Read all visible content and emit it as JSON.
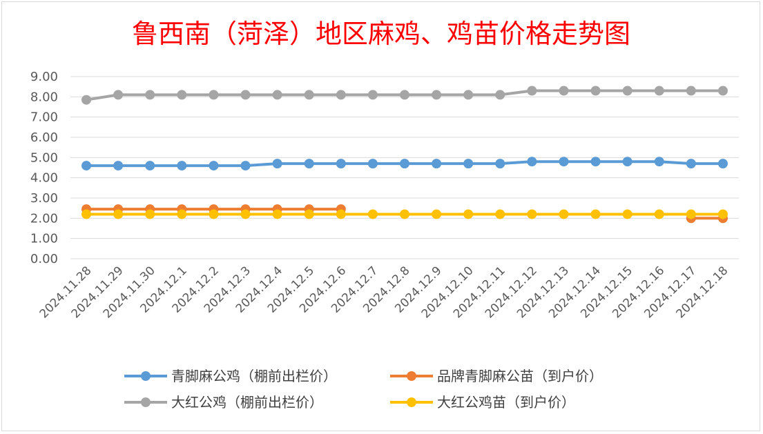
{
  "chart_data": {
    "type": "line",
    "title": "鲁西南（菏泽）地区麻鸡、鸡苗价格走势图",
    "xlabel": "",
    "ylabel": "",
    "ylim": [
      0,
      9
    ],
    "yticks": [
      "0.00",
      "1.00",
      "2.00",
      "3.00",
      "4.00",
      "5.00",
      "6.00",
      "7.00",
      "8.00",
      "9.00"
    ],
    "grid": "horizontal",
    "legend_position": "bottom",
    "categories": [
      "2024.11.28",
      "2024.11.29",
      "2024.11.30",
      "2024.12.1",
      "2024.12.2",
      "2024.12.3",
      "2024.12.4",
      "2024.12.5",
      "2024.12.6",
      "2024.12.7",
      "2024.12.8",
      "2024.12.9",
      "2024.12.10",
      "2024.12.11",
      "2024.12.12",
      "2024.12.13",
      "2024.12.14",
      "2024.12.15",
      "2024.12.16",
      "2024.12.17",
      "2024.12.18"
    ],
    "series": [
      {
        "name": "青脚麻公鸡（棚前出栏价）",
        "color": "#5b9bd5",
        "values": [
          4.6,
          4.6,
          4.6,
          4.6,
          4.6,
          4.6,
          4.7,
          4.7,
          4.7,
          4.7,
          4.7,
          4.7,
          4.7,
          4.7,
          4.8,
          4.8,
          4.8,
          4.8,
          4.8,
          4.7,
          4.7
        ]
      },
      {
        "name": "品牌青脚麻公苗（到户价）",
        "color": "#ed7d31",
        "values": [
          2.45,
          2.45,
          2.45,
          2.45,
          2.45,
          2.45,
          2.45,
          2.45,
          2.45,
          null,
          null,
          null,
          null,
          null,
          null,
          null,
          null,
          null,
          null,
          2.0,
          2.0
        ]
      },
      {
        "name": "大红公鸡（棚前出栏价）",
        "color": "#a5a5a5",
        "values": [
          7.85,
          8.1,
          8.1,
          8.1,
          8.1,
          8.1,
          8.1,
          8.1,
          8.1,
          8.1,
          8.1,
          8.1,
          8.1,
          8.1,
          8.3,
          8.3,
          8.3,
          8.3,
          8.3,
          8.3,
          8.3
        ]
      },
      {
        "name": "大红公鸡苗（到户价）",
        "color": "#ffc000",
        "values": [
          2.2,
          2.2,
          2.2,
          2.2,
          2.2,
          2.2,
          2.2,
          2.2,
          2.2,
          2.2,
          2.2,
          2.2,
          2.2,
          2.2,
          2.2,
          2.2,
          2.2,
          2.2,
          2.2,
          2.2,
          2.2
        ]
      }
    ]
  },
  "colors": {
    "title": "#ff0000",
    "gridline": "#d9d9d9",
    "tick_text": "#595959"
  }
}
